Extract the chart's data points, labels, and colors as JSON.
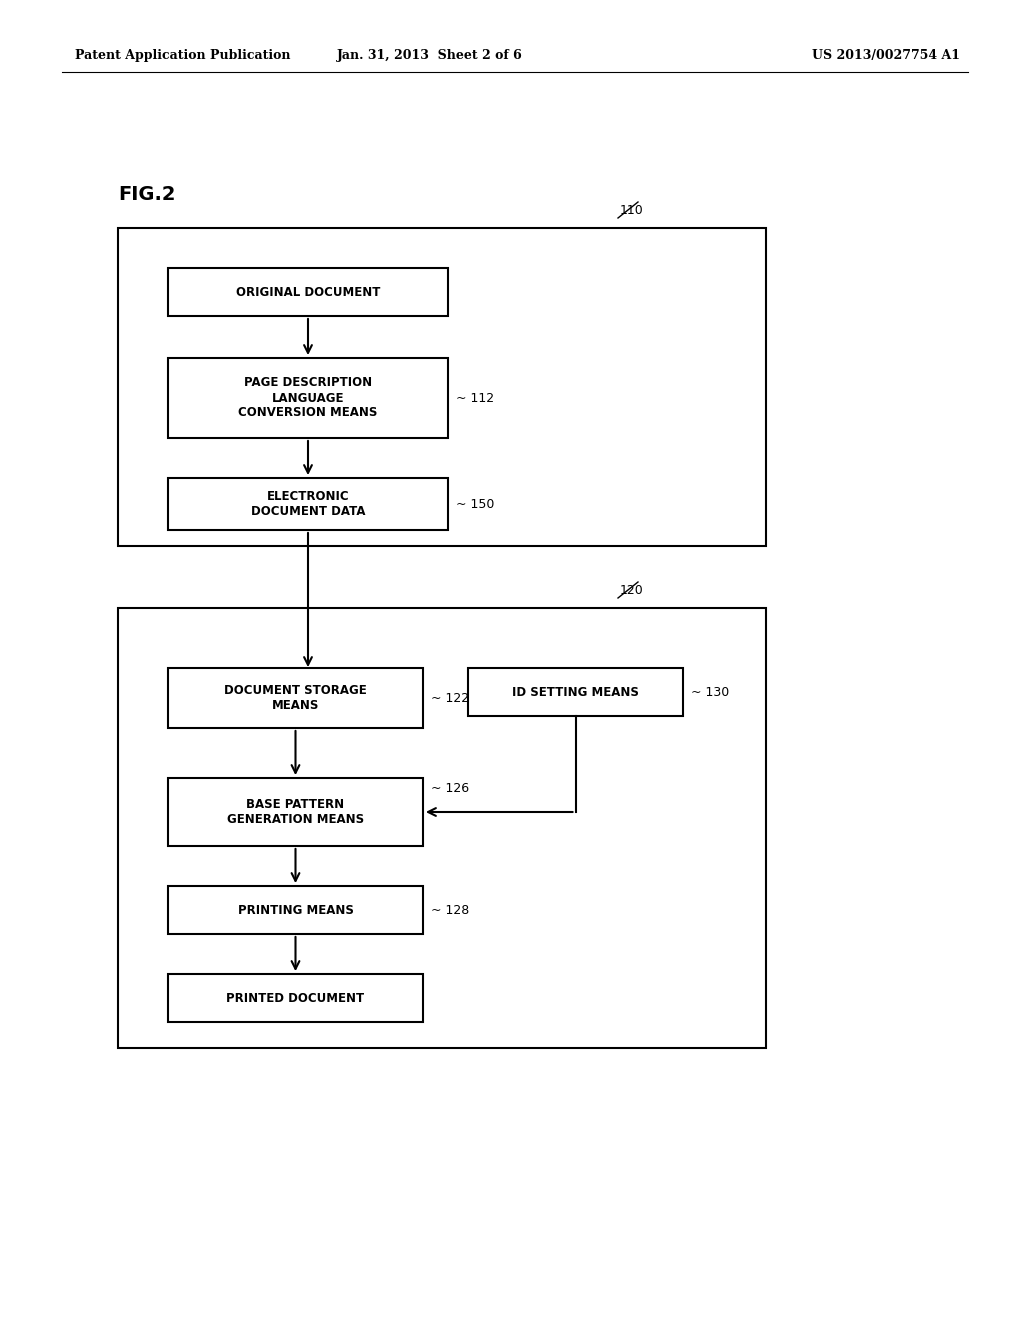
{
  "bg_color": "#ffffff",
  "header_left": "Patent Application Publication",
  "header_mid": "Jan. 31, 2013  Sheet 2 of 6",
  "header_right": "US 2013/0027754 A1",
  "fig_label": "FIG.2",
  "box110_label": "110",
  "box120_label": "120",
  "box_orig_doc": {
    "text": "ORIGINAL DOCUMENT",
    "label": "",
    "label_id": ""
  },
  "box_pdl": {
    "text": "PAGE DESCRIPTION\nLANGUAGE\nCONVERSION MEANS",
    "label": "112"
  },
  "box_edata": {
    "text": "ELECTRONIC\nDOCUMENT DATA",
    "label": "150"
  },
  "box_dstore": {
    "text": "DOCUMENT STORAGE\nMEANS",
    "label": "122"
  },
  "box_idset": {
    "text": "ID SETTING MEANS",
    "label": "130"
  },
  "box_bpgen": {
    "text": "BASE PATTERN\nGENERATION MEANS",
    "label": "126"
  },
  "box_print": {
    "text": "PRINTING MEANS",
    "label": "128"
  },
  "box_pdoc": {
    "text": "PRINTED DOCUMENT",
    "label": ""
  },
  "font_size_box": 8.5,
  "font_size_label": 9,
  "font_size_header": 9,
  "font_size_figlabel": 14
}
